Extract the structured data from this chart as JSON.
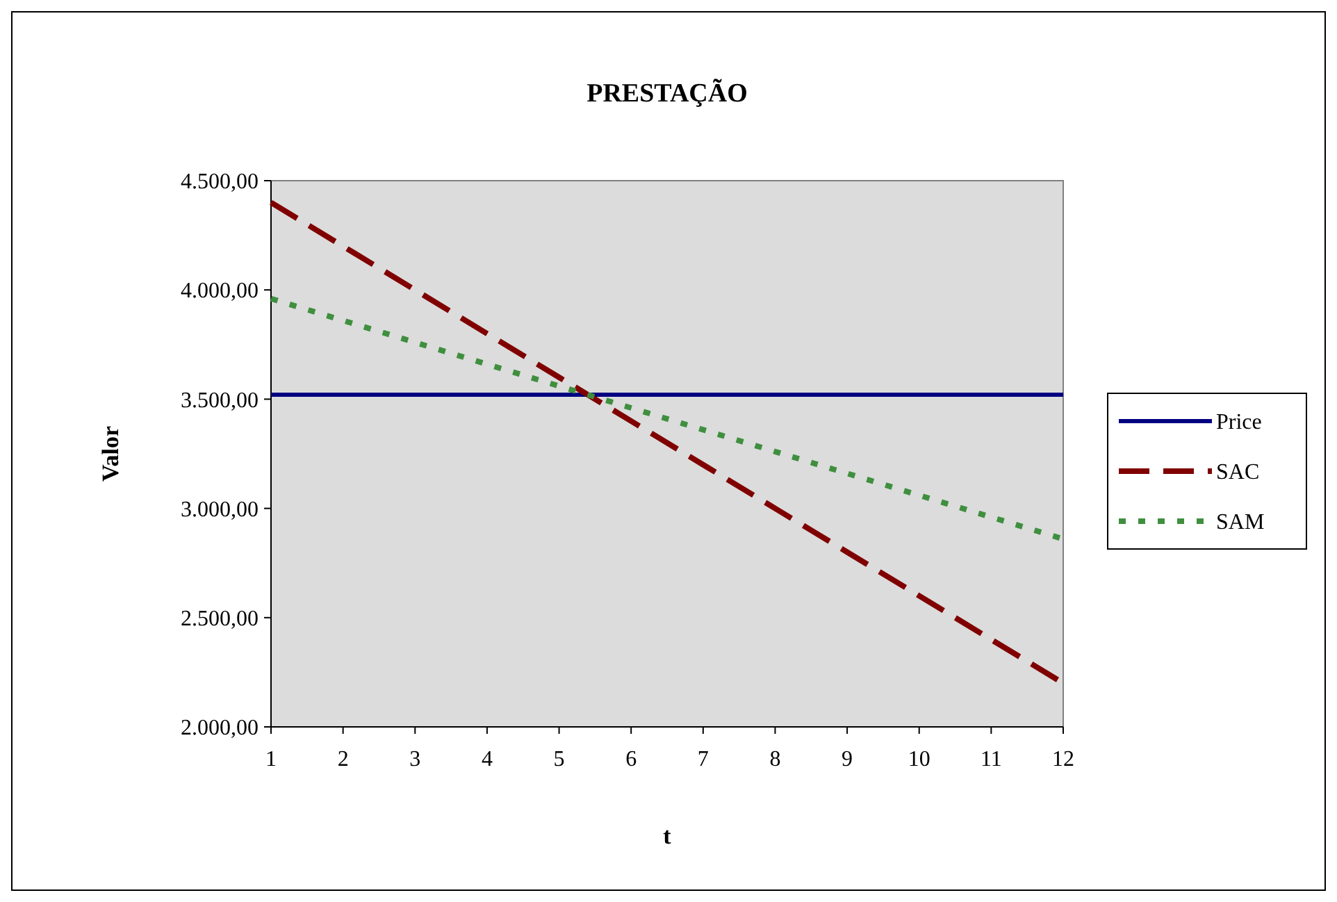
{
  "chart_data": {
    "type": "line",
    "title": "PRESTAÇÃO",
    "xlabel": "t",
    "ylabel": "Valor",
    "x": [
      1,
      2,
      3,
      4,
      5,
      6,
      7,
      8,
      9,
      10,
      11,
      12
    ],
    "series": [
      {
        "name": "Price",
        "color": "#000080",
        "line_style": "solid",
        "values": [
          3520,
          3520,
          3520,
          3520,
          3520,
          3520,
          3520,
          3520,
          3520,
          3520,
          3520,
          3520
        ]
      },
      {
        "name": "SAC",
        "color": "#800000",
        "line_style": "dashed",
        "values": [
          4400,
          4200,
          4000,
          3800,
          3600,
          3400,
          3200,
          3000,
          2800,
          2600,
          2400,
          2200
        ]
      },
      {
        "name": "SAM",
        "color": "#3f8f3f",
        "line_style": "dotted",
        "values": [
          3960,
          3860,
          3760,
          3660,
          3560,
          3460,
          3360,
          3260,
          3160,
          3060,
          2960,
          2860
        ]
      }
    ],
    "xlim": [
      1,
      12
    ],
    "xticks": [
      1,
      2,
      3,
      4,
      5,
      6,
      7,
      8,
      9,
      10,
      11,
      12
    ],
    "ylim": [
      2000,
      4500
    ],
    "yticks": [
      {
        "value": 2000,
        "label": "2.000,00"
      },
      {
        "value": 2500,
        "label": "2.500,00"
      },
      {
        "value": 3000,
        "label": "3.000,00"
      },
      {
        "value": 3500,
        "label": "3.500,00"
      },
      {
        "value": 4000,
        "label": "4.000,00"
      },
      {
        "value": 4500,
        "label": "4.500,00"
      }
    ],
    "grid": false,
    "legend": "right",
    "marker": "none"
  }
}
